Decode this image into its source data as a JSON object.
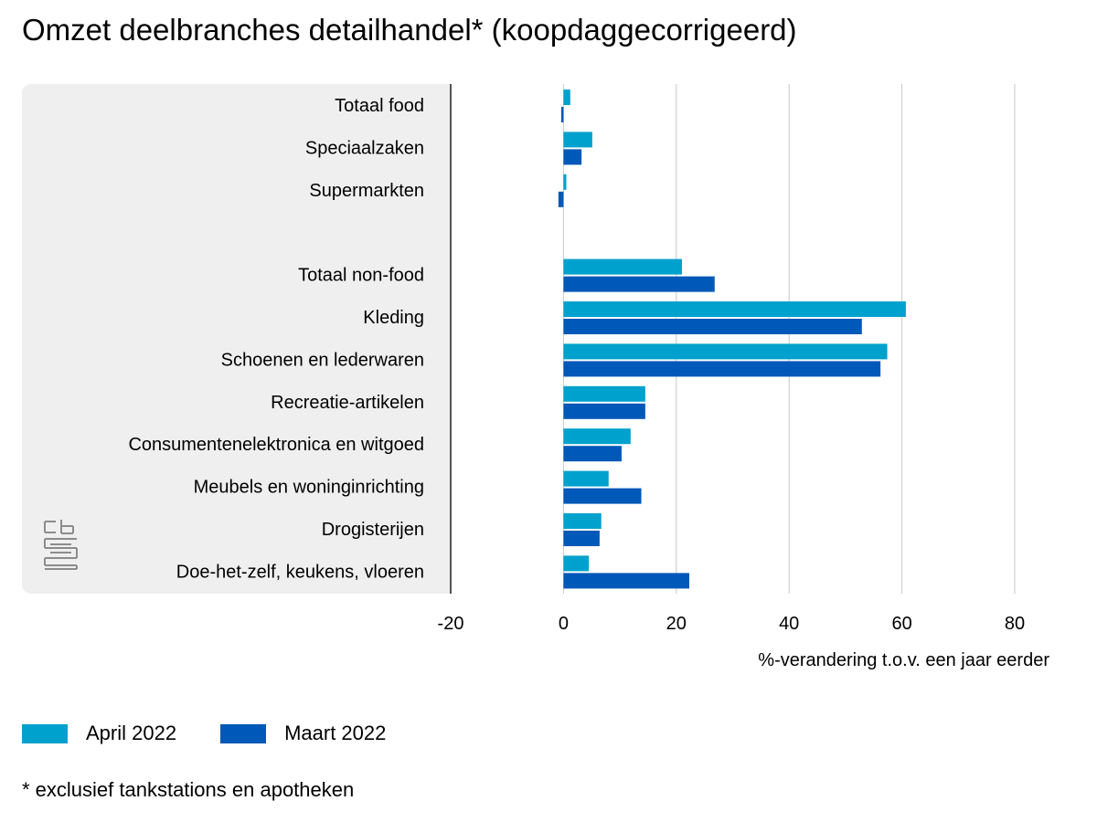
{
  "title": "Omzet deelbranches detailhandel* (koopdaggecorrigeerd)",
  "footnote": "* exclusief tankstations en apotheken",
  "colors": {
    "april": "#00a1cd",
    "maart": "#0058b8",
    "panel": "#efefef",
    "grid": "#c8c8c8",
    "axis": "#555555",
    "logo": "#8c8c8c"
  },
  "logo_icon": "cbs-logo-icon",
  "chart_data": {
    "type": "bar",
    "orientation": "horizontal",
    "title": "Omzet deelbranches detailhandel* (koopdaggecorrigeerd)",
    "xlabel": "%-verandering t.o.v. een jaar eerder",
    "ylabel": "",
    "xlim": [
      -20,
      80
    ],
    "xticks": [
      -20,
      0,
      20,
      40,
      60,
      80
    ],
    "grid": true,
    "legend_position": "bottom-left",
    "categories": [
      "Totaal food",
      "Speciaalzaken",
      "Supermarkten",
      "",
      "Totaal non-food",
      "Kleding",
      "Schoenen en lederwaren",
      "Recreatie-artikelen",
      "Consumentenelektronica en witgoed",
      "Meubels en woninginrichting",
      "Drogisterijen",
      "Doe-het-zelf, keukens, vloeren"
    ],
    "series": [
      {
        "name": "April 2022",
        "color": "#00a1cd",
        "values": [
          1.2,
          5.1,
          0.5,
          null,
          21.0,
          60.7,
          57.4,
          14.5,
          11.9,
          8.0,
          6.7,
          4.5
        ]
      },
      {
        "name": "Maart 2022",
        "color": "#0058b8",
        "values": [
          -0.4,
          3.2,
          -0.9,
          null,
          26.8,
          52.9,
          56.2,
          14.5,
          10.3,
          13.8,
          6.4,
          22.3
        ]
      }
    ]
  }
}
